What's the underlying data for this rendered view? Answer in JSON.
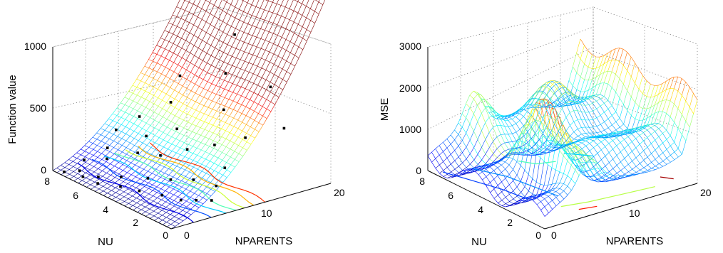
{
  "chart_data": [
    {
      "type": "surface",
      "zlabel": "Function value",
      "xlabel": "NPARENTS",
      "ylabel": "NU",
      "x_ticks": [
        "0",
        "10",
        "20"
      ],
      "y_ticks": [
        "0",
        "2",
        "4",
        "6",
        "8"
      ],
      "z_ticks": [
        "0",
        "500",
        "1000"
      ],
      "xlim": [
        0,
        20
      ],
      "ylim": [
        0,
        8
      ],
      "zlim": [
        0,
        1000
      ],
      "grid": true,
      "colormap": [
        "#00008f",
        "#0000ff",
        "#00ffff",
        "#ffff00",
        "#ff0000",
        "#800000"
      ],
      "marker_color": "#000000",
      "surface_description": "Fitted response surface rising with NPARENTS from about 0 at NPARENTS=0 to about 750 at NPARENTS=20, nearly flat along NU",
      "surface_model": {
        "x_range": [
          0,
          20
        ],
        "y_range": [
          0,
          8
        ],
        "z_at_x0": 0,
        "z_at_x20": 750
      },
      "sample_points": [
        {
          "x": 0.5,
          "y": 7.5,
          "z": 10
        },
        {
          "x": 1,
          "y": 6.5,
          "z": 20
        },
        {
          "x": 1,
          "y": 5.5,
          "z": 25
        },
        {
          "x": 1.5,
          "y": 7.0,
          "z": 30
        },
        {
          "x": 2,
          "y": 4.5,
          "z": 40
        },
        {
          "x": 2,
          "y": 6.0,
          "z": 30
        },
        {
          "x": 2.5,
          "y": 3.5,
          "z": 55
        },
        {
          "x": 3,
          "y": 7.5,
          "z": 60
        },
        {
          "x": 3,
          "y": 5.0,
          "z": 70
        },
        {
          "x": 3.5,
          "y": 2.5,
          "z": 60
        },
        {
          "x": 4,
          "y": 6.5,
          "z": 110
        },
        {
          "x": 4,
          "y": 1.5,
          "z": 70
        },
        {
          "x": 4.5,
          "y": 4.0,
          "z": 90
        },
        {
          "x": 5,
          "y": 7.0,
          "z": 150
        },
        {
          "x": 5,
          "y": 1.0,
          "z": 80
        },
        {
          "x": 5.5,
          "y": 3.0,
          "z": 120
        },
        {
          "x": 6,
          "y": 5.5,
          "z": 180
        },
        {
          "x": 6,
          "y": 0.5,
          "z": 90
        },
        {
          "x": 6.5,
          "y": 2.0,
          "z": 160
        },
        {
          "x": 7,
          "y": 7.5,
          "z": 230
        },
        {
          "x": 7,
          "y": 4.5,
          "z": 200
        },
        {
          "x": 7.5,
          "y": 1.0,
          "z": 150
        },
        {
          "x": 8,
          "y": 6.0,
          "z": 250
        },
        {
          "x": 8.5,
          "y": 3.5,
          "z": 280
        },
        {
          "x": 9,
          "y": 7.0,
          "z": 330
        },
        {
          "x": 9.5,
          "y": 1.5,
          "z": 230
        },
        {
          "x": 10,
          "y": 5.0,
          "z": 330
        },
        {
          "x": 11,
          "y": 3.0,
          "z": 300
        },
        {
          "x": 12,
          "y": 6.5,
          "z": 420
        },
        {
          "x": 13,
          "y": 2.0,
          "z": 380
        },
        {
          "x": 14,
          "y": 4.0,
          "z": 470
        },
        {
          "x": 15,
          "y": 7.5,
          "z": 520
        },
        {
          "x": 16,
          "y": 1.0,
          "z": 460
        },
        {
          "x": 17,
          "y": 5.5,
          "z": 620
        },
        {
          "x": 18,
          "y": 3.0,
          "z": 640
        },
        {
          "x": 20,
          "y": 6.5,
          "z": 820
        }
      ]
    },
    {
      "type": "surface",
      "zlabel": "MSE",
      "xlabel": "NPARENTS",
      "ylabel": "NU",
      "x_ticks": [
        "0",
        "10",
        "20"
      ],
      "y_ticks": [
        "0",
        "2",
        "4",
        "6",
        "8"
      ],
      "z_ticks": [
        "0",
        "1000",
        "2000",
        "3000"
      ],
      "xlim": [
        0,
        20
      ],
      "ylim": [
        0,
        8
      ],
      "zlim": [
        0,
        3000
      ],
      "grid": true,
      "colormap": [
        "#00008f",
        "#0000ff",
        "#00ffff",
        "#ffff00",
        "#ff0000",
        "#800000"
      ],
      "surface_description": "Mean squared error surface, wavy, between about 0 and 2700, with a ridge near NPARENTS 5-8 and a peak around 2700",
      "surface_model": {
        "x_range": [
          0,
          20
        ],
        "y_range": [
          0,
          8
        ],
        "z_min": 0,
        "z_max": 2700
      }
    }
  ]
}
